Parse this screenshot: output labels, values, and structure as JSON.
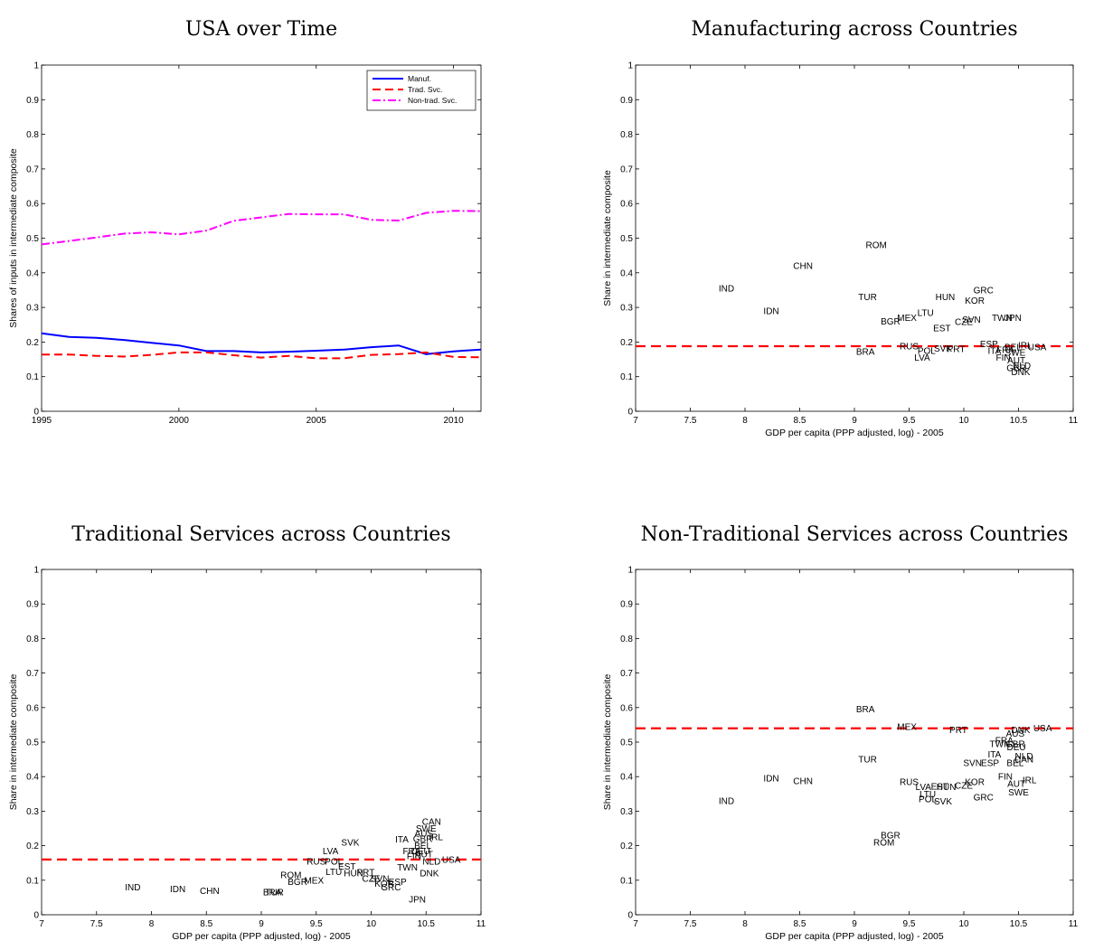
{
  "chart_data": [
    {
      "type": "line",
      "title": "USA over Time",
      "xlabel": "",
      "ylabel": "Shares of inputs in intermediate composite",
      "xlim": [
        1995,
        2011
      ],
      "ylim": [
        0,
        1
      ],
      "x_ticks": [
        1995,
        2000,
        2005,
        2010
      ],
      "y_ticks": [
        0,
        0.1,
        0.2,
        0.3,
        0.4,
        0.5,
        0.6,
        0.7,
        0.8,
        0.9,
        1
      ],
      "y_tick_labels": [
        "0",
        "0.1",
        "0.2",
        "0.3",
        "0.4",
        "0.5",
        "0.6",
        "0.7",
        "0.8",
        "0.9",
        "1"
      ],
      "legend_position": "top-right",
      "x": [
        1995,
        1996,
        1997,
        1998,
        1999,
        2000,
        2001,
        2002,
        2003,
        2004,
        2005,
        2006,
        2007,
        2008,
        2009,
        2010,
        2011
      ],
      "series": [
        {
          "name": "Manuf.",
          "color": "#0000ff",
          "dash": "solid",
          "values": [
            0.225,
            0.215,
            0.212,
            0.206,
            0.198,
            0.19,
            0.174,
            0.174,
            0.17,
            0.172,
            0.175,
            0.178,
            0.185,
            0.19,
            0.165,
            0.173,
            0.178
          ]
        },
        {
          "name": "Trad. Svc.",
          "color": "#ff0000",
          "dash": "dashed",
          "values": [
            0.164,
            0.164,
            0.16,
            0.158,
            0.163,
            0.17,
            0.17,
            0.162,
            0.155,
            0.16,
            0.153,
            0.153,
            0.163,
            0.165,
            0.17,
            0.157,
            0.156
          ]
        },
        {
          "name": "Non-trad. Svc.",
          "color": "#ff00ff",
          "dash": "dashdot",
          "values": [
            0.482,
            0.492,
            0.502,
            0.513,
            0.517,
            0.511,
            0.522,
            0.55,
            0.56,
            0.57,
            0.569,
            0.569,
            0.553,
            0.551,
            0.573,
            0.579,
            0.578
          ]
        }
      ]
    },
    {
      "type": "scatter",
      "title": "Manufacturing across Countries",
      "xlabel": "GDP per capita (PPP adjusted, log) - 2005",
      "ylabel": "Share in intermediate composite",
      "xlim": [
        7,
        11
      ],
      "ylim": [
        0,
        1
      ],
      "x_ticks": [
        7,
        7.5,
        8,
        8.5,
        9,
        9.5,
        10,
        10.5,
        11
      ],
      "y_ticks": [
        0,
        0.1,
        0.2,
        0.3,
        0.4,
        0.5,
        0.6,
        0.7,
        0.8,
        0.9,
        1
      ],
      "y_tick_labels": [
        "0",
        "0.1",
        "0.2",
        "0.3",
        "0.4",
        "0.5",
        "0.6",
        "0.7",
        "0.8",
        "0.9",
        "1"
      ],
      "reference_line": {
        "y": 0.188,
        "color": "#ff0000",
        "dash": "dashed"
      },
      "points": [
        {
          "label": "ROM",
          "x": 9.2,
          "y": 0.48
        },
        {
          "label": "CHN",
          "x": 8.53,
          "y": 0.42
        },
        {
          "label": "IND",
          "x": 7.83,
          "y": 0.355
        },
        {
          "label": "IDN",
          "x": 8.24,
          "y": 0.29
        },
        {
          "label": "TUR",
          "x": 9.12,
          "y": 0.33
        },
        {
          "label": "HUN",
          "x": 9.83,
          "y": 0.33
        },
        {
          "label": "GRC",
          "x": 10.18,
          "y": 0.35
        },
        {
          "label": "KOR",
          "x": 10.1,
          "y": 0.32
        },
        {
          "label": "LTU",
          "x": 9.65,
          "y": 0.285
        },
        {
          "label": "MEX",
          "x": 9.48,
          "y": 0.27
        },
        {
          "label": "BGR",
          "x": 9.33,
          "y": 0.26
        },
        {
          "label": "CZE",
          "x": 10.0,
          "y": 0.258
        },
        {
          "label": "SVN",
          "x": 10.07,
          "y": 0.265
        },
        {
          "label": "TWN",
          "x": 10.35,
          "y": 0.27
        },
        {
          "label": "JPN",
          "x": 10.45,
          "y": 0.27
        },
        {
          "label": "EST",
          "x": 9.8,
          "y": 0.24
        },
        {
          "label": "ESP",
          "x": 10.23,
          "y": 0.195
        },
        {
          "label": "RUS",
          "x": 9.5,
          "y": 0.188
        },
        {
          "label": "POL",
          "x": 9.66,
          "y": 0.175
        },
        {
          "label": "SVK",
          "x": 9.81,
          "y": 0.182
        },
        {
          "label": "PRT",
          "x": 9.93,
          "y": 0.18
        },
        {
          "label": "ITA",
          "x": 10.28,
          "y": 0.175
        },
        {
          "label": "FRA",
          "x": 10.38,
          "y": 0.178
        },
        {
          "label": "BEL",
          "x": 10.45,
          "y": 0.185
        },
        {
          "label": "IRL",
          "x": 10.56,
          "y": 0.19
        },
        {
          "label": "USA",
          "x": 10.67,
          "y": 0.185
        },
        {
          "label": "SWE",
          "x": 10.47,
          "y": 0.17
        },
        {
          "label": "FIN",
          "x": 10.36,
          "y": 0.155
        },
        {
          "label": "AUT",
          "x": 10.48,
          "y": 0.148
        },
        {
          "label": "NLD",
          "x": 10.53,
          "y": 0.132
        },
        {
          "label": "GBR",
          "x": 10.48,
          "y": 0.125
        },
        {
          "label": "DNK",
          "x": 10.52,
          "y": 0.113
        },
        {
          "label": "BRA",
          "x": 9.1,
          "y": 0.172
        },
        {
          "label": "LVA",
          "x": 9.62,
          "y": 0.155
        }
      ]
    },
    {
      "type": "scatter",
      "title": "Traditional Services across Countries",
      "xlabel": "GDP per capita (PPP adjusted, log) - 2005",
      "ylabel": "Share in intermediate composite",
      "xlim": [
        7,
        11
      ],
      "ylim": [
        0,
        1
      ],
      "x_ticks": [
        7,
        7.5,
        8,
        8.5,
        9,
        9.5,
        10,
        10.5,
        11
      ],
      "y_ticks": [
        0,
        0.1,
        0.2,
        0.3,
        0.4,
        0.5,
        0.6,
        0.7,
        0.8,
        0.9,
        1
      ],
      "y_tick_labels": [
        "0",
        "0.1",
        "0.2",
        "0.3",
        "0.4",
        "0.5",
        "0.6",
        "0.7",
        "0.8",
        "0.9",
        "1"
      ],
      "reference_line": {
        "y": 0.16,
        "color": "#ff0000",
        "dash": "dashed"
      },
      "points": [
        {
          "label": "CAN",
          "x": 10.55,
          "y": 0.27
        },
        {
          "label": "SWE",
          "x": 10.5,
          "y": 0.25
        },
        {
          "label": "AUS",
          "x": 10.48,
          "y": 0.235
        },
        {
          "label": "GBR",
          "x": 10.47,
          "y": 0.22
        },
        {
          "label": "IRL",
          "x": 10.59,
          "y": 0.225
        },
        {
          "label": "ITA",
          "x": 10.28,
          "y": 0.218
        },
        {
          "label": "SVK",
          "x": 9.81,
          "y": 0.21
        },
        {
          "label": "BEL",
          "x": 10.47,
          "y": 0.2
        },
        {
          "label": "FRA",
          "x": 10.37,
          "y": 0.185
        },
        {
          "label": "DEU",
          "x": 10.45,
          "y": 0.185
        },
        {
          "label": "AUT",
          "x": 10.48,
          "y": 0.175
        },
        {
          "label": "FIN",
          "x": 10.39,
          "y": 0.17
        },
        {
          "label": "LVA",
          "x": 9.63,
          "y": 0.185
        },
        {
          "label": "NLD",
          "x": 10.55,
          "y": 0.155
        },
        {
          "label": "USA",
          "x": 10.73,
          "y": 0.16
        },
        {
          "label": "RUS",
          "x": 9.5,
          "y": 0.155
        },
        {
          "label": "POL",
          "x": 9.66,
          "y": 0.155
        },
        {
          "label": "EST",
          "x": 9.78,
          "y": 0.14
        },
        {
          "label": "LTU",
          "x": 9.66,
          "y": 0.125
        },
        {
          "label": "HUN",
          "x": 9.84,
          "y": 0.12
        },
        {
          "label": "PRT",
          "x": 9.95,
          "y": 0.123
        },
        {
          "label": "TWN",
          "x": 10.33,
          "y": 0.138
        },
        {
          "label": "DNK",
          "x": 10.53,
          "y": 0.12
        },
        {
          "label": "CZE",
          "x": 10.0,
          "y": 0.105
        },
        {
          "label": "SVN",
          "x": 10.08,
          "y": 0.105
        },
        {
          "label": "ESP",
          "x": 10.24,
          "y": 0.095
        },
        {
          "label": "KOR",
          "x": 10.12,
          "y": 0.09
        },
        {
          "label": "GRC",
          "x": 10.18,
          "y": 0.08
        },
        {
          "label": "ROM",
          "x": 9.27,
          "y": 0.115
        },
        {
          "label": "BGR",
          "x": 9.33,
          "y": 0.095
        },
        {
          "label": "MEX",
          "x": 9.48,
          "y": 0.1
        },
        {
          "label": "IND",
          "x": 7.83,
          "y": 0.08
        },
        {
          "label": "IDN",
          "x": 8.24,
          "y": 0.075
        },
        {
          "label": "CHN",
          "x": 8.53,
          "y": 0.07
        },
        {
          "label": "BRA",
          "x": 9.1,
          "y": 0.065
        },
        {
          "label": "TUR",
          "x": 9.12,
          "y": 0.065
        },
        {
          "label": "JPN",
          "x": 10.42,
          "y": 0.045
        }
      ]
    },
    {
      "type": "scatter",
      "title": "Non-Traditional Services across Countries",
      "xlabel": "GDP per capita (PPP adjusted, log) - 2005",
      "ylabel": "Share in intermediate composite",
      "xlim": [
        7,
        11
      ],
      "ylim": [
        0,
        1
      ],
      "x_ticks": [
        7,
        7.5,
        8,
        8.5,
        9,
        9.5,
        10,
        10.5,
        11
      ],
      "y_ticks": [
        0,
        0.1,
        0.2,
        0.3,
        0.4,
        0.5,
        0.6,
        0.7,
        0.8,
        0.9,
        1
      ],
      "y_tick_labels": [
        "0",
        "0.1",
        "0.2",
        "0.3",
        "0.4",
        "0.5",
        "0.6",
        "0.7",
        "0.8",
        "0.9",
        "1"
      ],
      "reference_line": {
        "y": 0.54,
        "color": "#ff0000",
        "dash": "dashed"
      },
      "points": [
        {
          "label": "BRA",
          "x": 9.1,
          "y": 0.595
        },
        {
          "label": "MEX",
          "x": 9.48,
          "y": 0.545
        },
        {
          "label": "PRT",
          "x": 9.95,
          "y": 0.535
        },
        {
          "label": "USA",
          "x": 10.72,
          "y": 0.54
        },
        {
          "label": "DNK",
          "x": 10.52,
          "y": 0.535
        },
        {
          "label": "AUS",
          "x": 10.47,
          "y": 0.525
        },
        {
          "label": "FRA",
          "x": 10.37,
          "y": 0.505
        },
        {
          "label": "TWN",
          "x": 10.33,
          "y": 0.495
        },
        {
          "label": "GBR",
          "x": 10.47,
          "y": 0.495
        },
        {
          "label": "DEU",
          "x": 10.48,
          "y": 0.485
        },
        {
          "label": "ITA",
          "x": 10.28,
          "y": 0.465
        },
        {
          "label": "NLD",
          "x": 10.55,
          "y": 0.46
        },
        {
          "label": "CAN",
          "x": 10.55,
          "y": 0.45
        },
        {
          "label": "BEL",
          "x": 10.47,
          "y": 0.44
        },
        {
          "label": "SVN",
          "x": 10.08,
          "y": 0.44
        },
        {
          "label": "ESP",
          "x": 10.24,
          "y": 0.44
        },
        {
          "label": "TUR",
          "x": 9.12,
          "y": 0.45
        },
        {
          "label": "FIN",
          "x": 10.38,
          "y": 0.4
        },
        {
          "label": "IRL",
          "x": 10.6,
          "y": 0.39
        },
        {
          "label": "AUT",
          "x": 10.48,
          "y": 0.38
        },
        {
          "label": "SWE",
          "x": 10.5,
          "y": 0.355
        },
        {
          "label": "KOR",
          "x": 10.1,
          "y": 0.385
        },
        {
          "label": "CZE",
          "x": 10.0,
          "y": 0.375
        },
        {
          "label": "HUN",
          "x": 9.84,
          "y": 0.37
        },
        {
          "label": "EST",
          "x": 9.78,
          "y": 0.372
        },
        {
          "label": "LVA",
          "x": 9.63,
          "y": 0.37
        },
        {
          "label": "RUS",
          "x": 9.5,
          "y": 0.385
        },
        {
          "label": "LTU",
          "x": 9.67,
          "y": 0.35
        },
        {
          "label": "POL",
          "x": 9.67,
          "y": 0.335
        },
        {
          "label": "SVK",
          "x": 9.81,
          "y": 0.328
        },
        {
          "label": "GRC",
          "x": 10.18,
          "y": 0.34
        },
        {
          "label": "IDN",
          "x": 8.24,
          "y": 0.395
        },
        {
          "label": "CHN",
          "x": 8.53,
          "y": 0.388
        },
        {
          "label": "IND",
          "x": 7.83,
          "y": 0.33
        },
        {
          "label": "BGR",
          "x": 9.33,
          "y": 0.23
        },
        {
          "label": "ROM",
          "x": 9.27,
          "y": 0.21
        }
      ]
    }
  ]
}
